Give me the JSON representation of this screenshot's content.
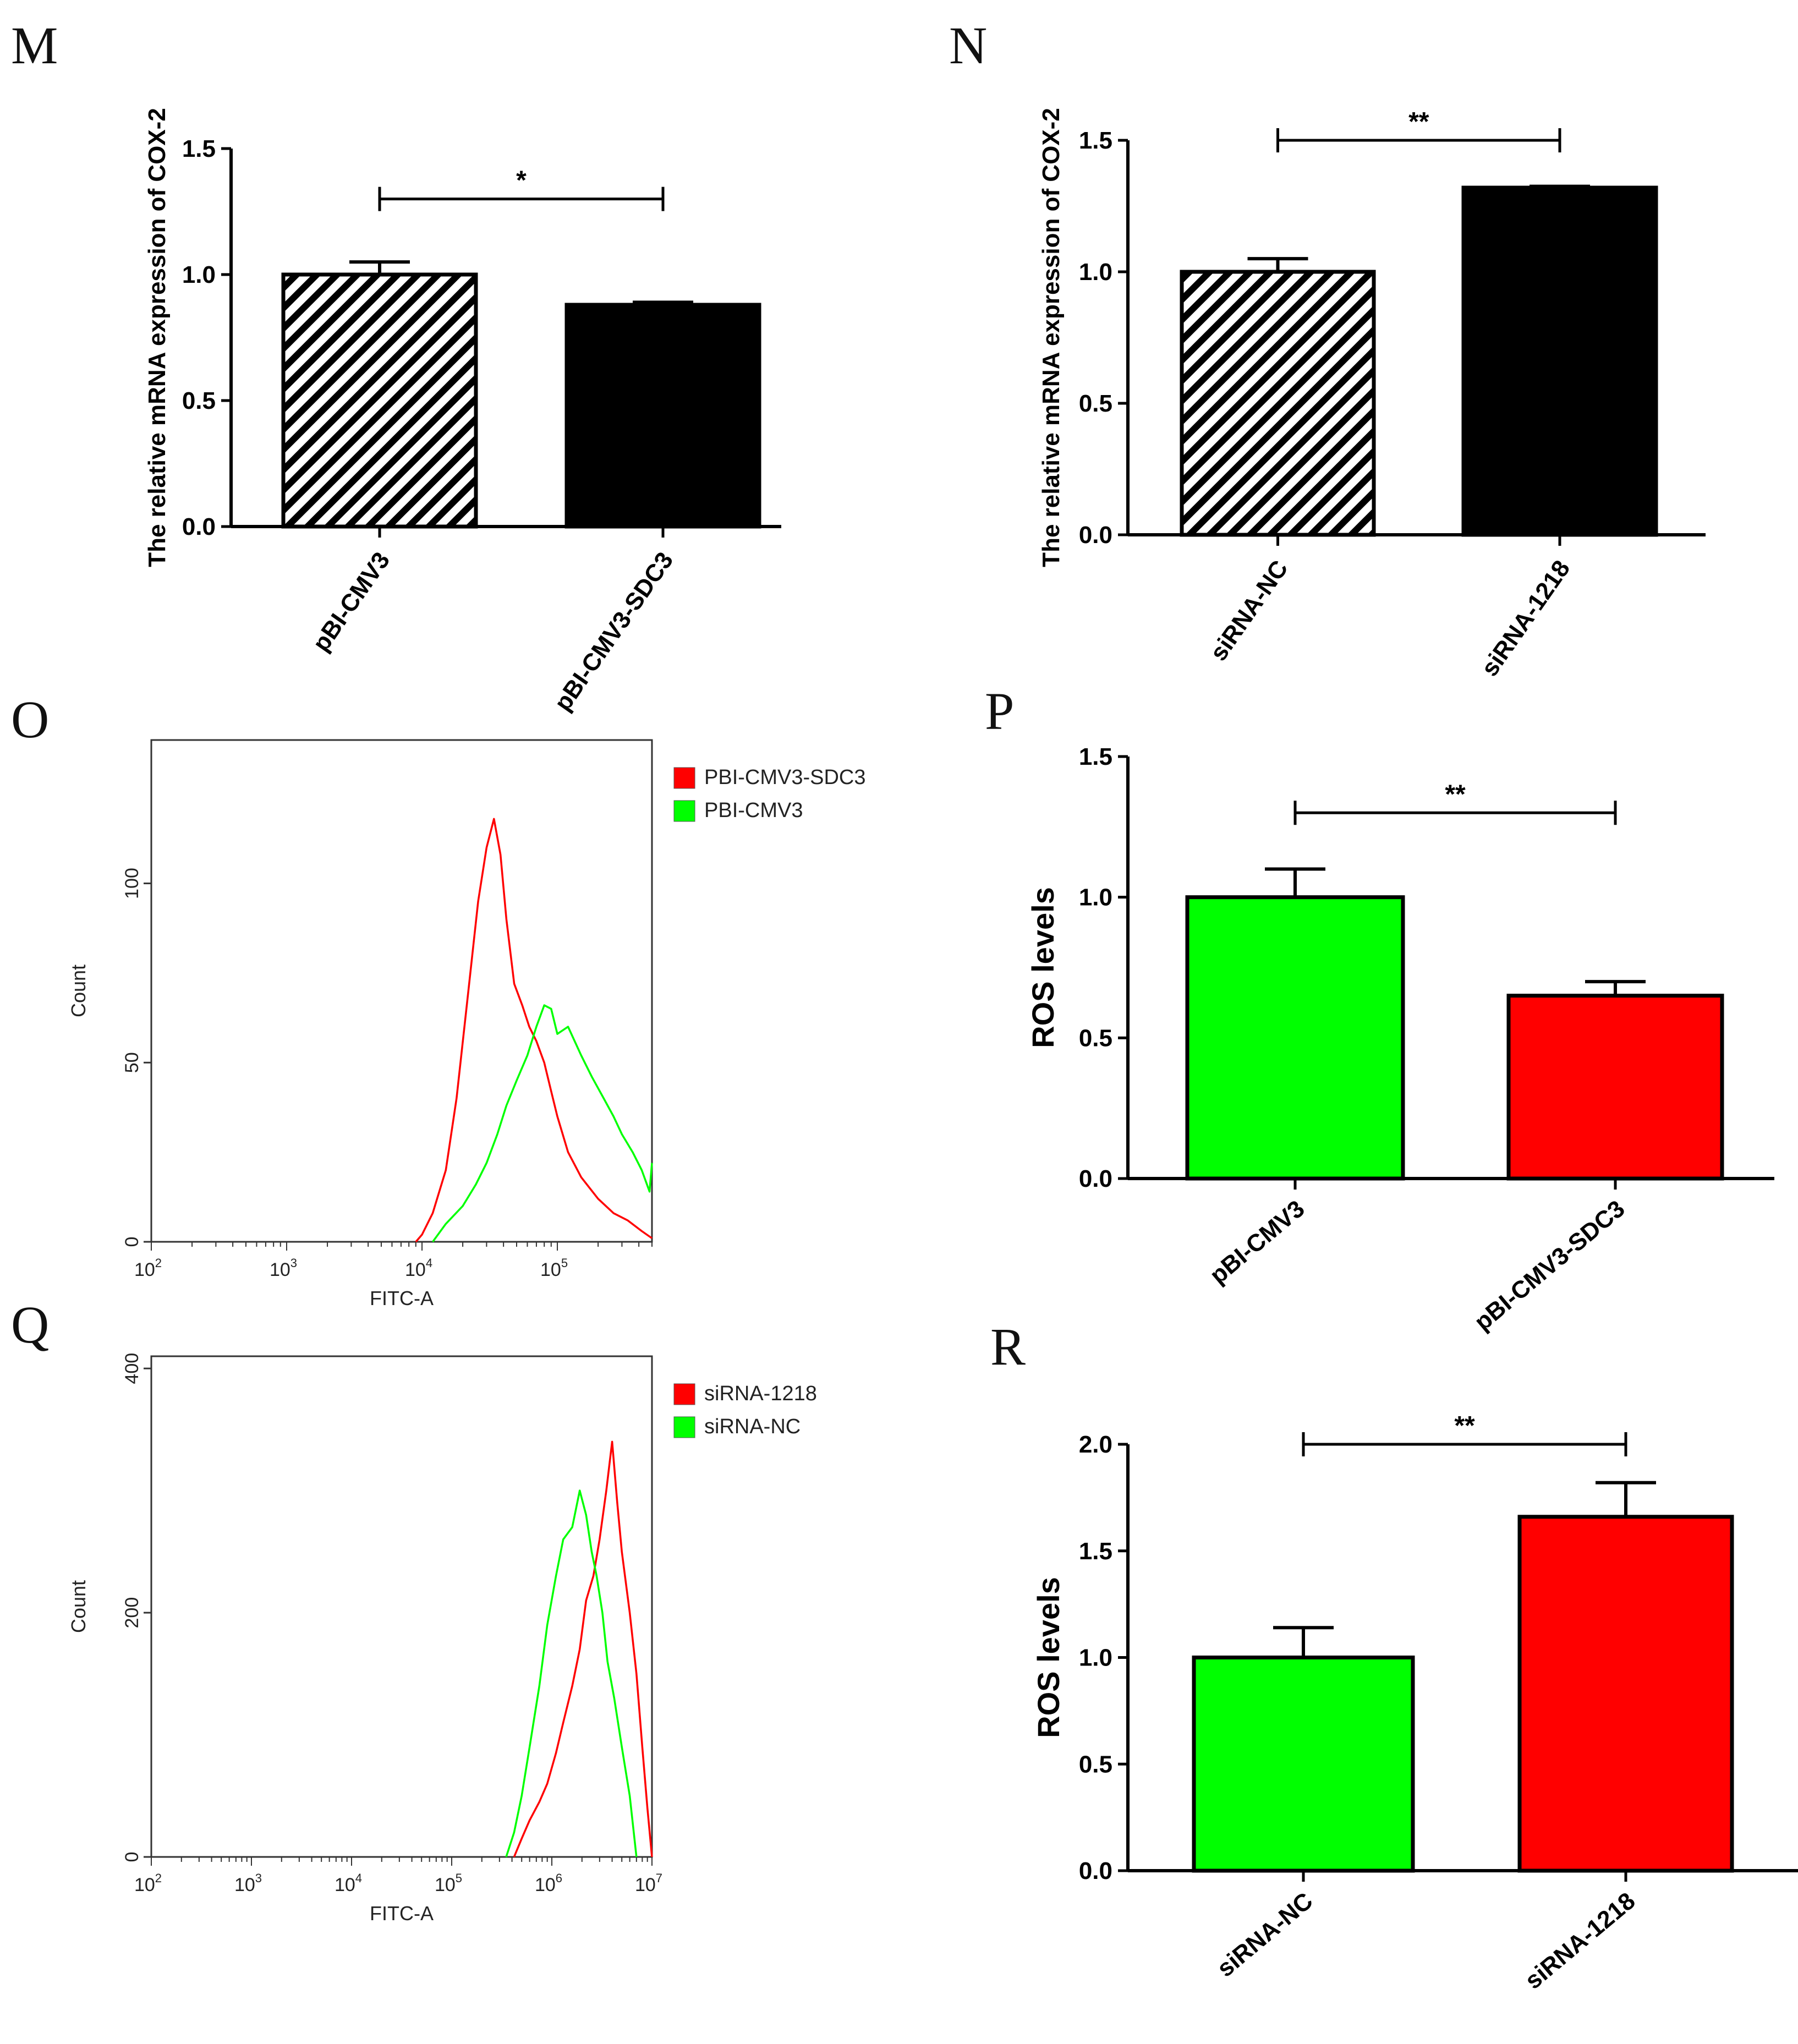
{
  "figure": {
    "colors": {
      "green": "#00ff00",
      "red": "#ff0000",
      "black": "#000000"
    }
  },
  "chart_data": [
    {
      "id": "M",
      "panel": "M",
      "type": "bar",
      "ylabel": "The relative mRNA expression of COX-2",
      "ylim": [
        0,
        1.5
      ],
      "yticks": [
        "0.0",
        "0.5",
        "1.0",
        "1.5"
      ],
      "categories": [
        "pBI-CMV3",
        "pBI-CMV3-SDC3"
      ],
      "values": [
        1.0,
        0.88
      ],
      "errors": [
        0.05,
        0.01
      ],
      "styles": [
        "hatch",
        "black"
      ],
      "significance": {
        "label": "*",
        "y": 1.3
      }
    },
    {
      "id": "N",
      "panel": "N",
      "type": "bar",
      "ylabel": "The relative mRNA expression of COX-2",
      "ylim": [
        0,
        1.5
      ],
      "yticks": [
        "0.0",
        "0.5",
        "1.0",
        "1.5"
      ],
      "categories": [
        "siRNA-NC",
        "siRNA-1218"
      ],
      "values": [
        1.0,
        1.32
      ],
      "errors": [
        0.05,
        0.005
      ],
      "styles": [
        "hatch",
        "black"
      ],
      "significance": {
        "label": "**",
        "y": 1.5
      }
    },
    {
      "id": "O",
      "panel": "O",
      "type": "line",
      "subtype": "flow-cytometry-histogram",
      "xlabel": "FITC-A",
      "ylabel": "Count",
      "xscale": "log",
      "xlim": [
        100,
        500000
      ],
      "ylim": [
        0,
        140
      ],
      "xticks": [
        {
          "base": "10",
          "exp": "2"
        },
        {
          "base": "10",
          "exp": "3"
        },
        {
          "base": "10",
          "exp": "4"
        },
        {
          "base": "10",
          "exp": "5"
        }
      ],
      "yticks": [
        "0",
        "50",
        "100"
      ],
      "ytick_values": [
        0,
        50,
        100
      ],
      "series": [
        {
          "name": "PBI-CMV3-SDC3",
          "color": "red",
          "x": [
            9000,
            10000,
            12000,
            15000,
            18000,
            22000,
            26000,
            30000,
            34000,
            38000,
            42000,
            48000,
            55000,
            62000,
            70000,
            80000,
            90000,
            100000,
            120000,
            150000,
            200000,
            260000,
            330000,
            420000,
            500000
          ],
          "y": [
            0,
            2,
            8,
            20,
            40,
            70,
            95,
            110,
            118,
            108,
            90,
            72,
            66,
            60,
            56,
            50,
            42,
            35,
            25,
            18,
            12,
            8,
            6,
            3,
            1
          ]
        },
        {
          "name": "PBI-CMV3",
          "color": "green",
          "x": [
            12000,
            15000,
            20000,
            25000,
            30000,
            36000,
            42000,
            50000,
            60000,
            70000,
            80000,
            90000,
            100000,
            120000,
            150000,
            180000,
            220000,
            260000,
            300000,
            360000,
            420000,
            480000,
            500000
          ],
          "y": [
            0,
            5,
            10,
            16,
            22,
            30,
            38,
            45,
            52,
            60,
            66,
            65,
            58,
            60,
            52,
            46,
            40,
            35,
            30,
            25,
            20,
            14,
            22
          ]
        }
      ]
    },
    {
      "id": "P",
      "panel": "P",
      "type": "bar",
      "ylabel": "ROS levels",
      "ylim": [
        0,
        1.5
      ],
      "yticks": [
        "0.0",
        "0.5",
        "1.0",
        "1.5"
      ],
      "categories": [
        "pBI-CMV3",
        "pBI-CMV3-SDC3"
      ],
      "values": [
        1.0,
        0.65
      ],
      "errors": [
        0.1,
        0.05
      ],
      "styles": [
        "green",
        "red"
      ],
      "significance": {
        "label": "**",
        "y": 1.3
      }
    },
    {
      "id": "Q",
      "panel": "Q",
      "type": "line",
      "subtype": "flow-cytometry-histogram",
      "xlabel": "FITC-A",
      "ylabel": "Count",
      "xscale": "log",
      "xlim": [
        100,
        10000000
      ],
      "ylim": [
        0,
        410
      ],
      "xticks": [
        {
          "base": "10",
          "exp": "2"
        },
        {
          "base": "10",
          "exp": "3"
        },
        {
          "base": "10",
          "exp": "4"
        },
        {
          "base": "10",
          "exp": "5"
        },
        {
          "base": "10",
          "exp": "6"
        },
        {
          "base": "10",
          "exp": "7"
        }
      ],
      "yticks": [
        "0",
        "200",
        "400"
      ],
      "ytick_values": [
        0,
        200,
        400
      ],
      "series": [
        {
          "name": "siRNA-1218",
          "color": "red",
          "x": [
            420000,
            500000,
            600000,
            750000,
            900000,
            1100000,
            1300000,
            1600000,
            1900000,
            2200000,
            2600000,
            3000000,
            3500000,
            4000000,
            4500000,
            5000000,
            6000000,
            7000000,
            8000000,
            9000000,
            10000000
          ],
          "y": [
            0,
            15,
            30,
            45,
            60,
            85,
            110,
            140,
            170,
            210,
            230,
            260,
            300,
            340,
            290,
            250,
            200,
            150,
            90,
            40,
            0
          ]
        },
        {
          "name": "siRNA-NC",
          "color": "green",
          "x": [
            350000,
            420000,
            500000,
            600000,
            750000,
            900000,
            1100000,
            1300000,
            1600000,
            1900000,
            2200000,
            2500000,
            2800000,
            3200000,
            3600000,
            4200000,
            5000000,
            6000000,
            7000000
          ],
          "y": [
            0,
            20,
            50,
            90,
            140,
            190,
            230,
            260,
            270,
            300,
            280,
            250,
            230,
            200,
            160,
            130,
            90,
            50,
            0
          ]
        }
      ]
    },
    {
      "id": "R",
      "panel": "R",
      "type": "bar",
      "ylabel": "ROS levels",
      "ylim": [
        0,
        2.0
      ],
      "yticks": [
        "0.0",
        "0.5",
        "1.0",
        "1.5",
        "2.0"
      ],
      "categories": [
        "siRNA-NC",
        "siRNA-1218"
      ],
      "values": [
        1.0,
        1.66
      ],
      "errors": [
        0.14,
        0.16
      ],
      "styles": [
        "green",
        "red"
      ],
      "significance": {
        "label": "**",
        "y": 2.0
      }
    }
  ]
}
